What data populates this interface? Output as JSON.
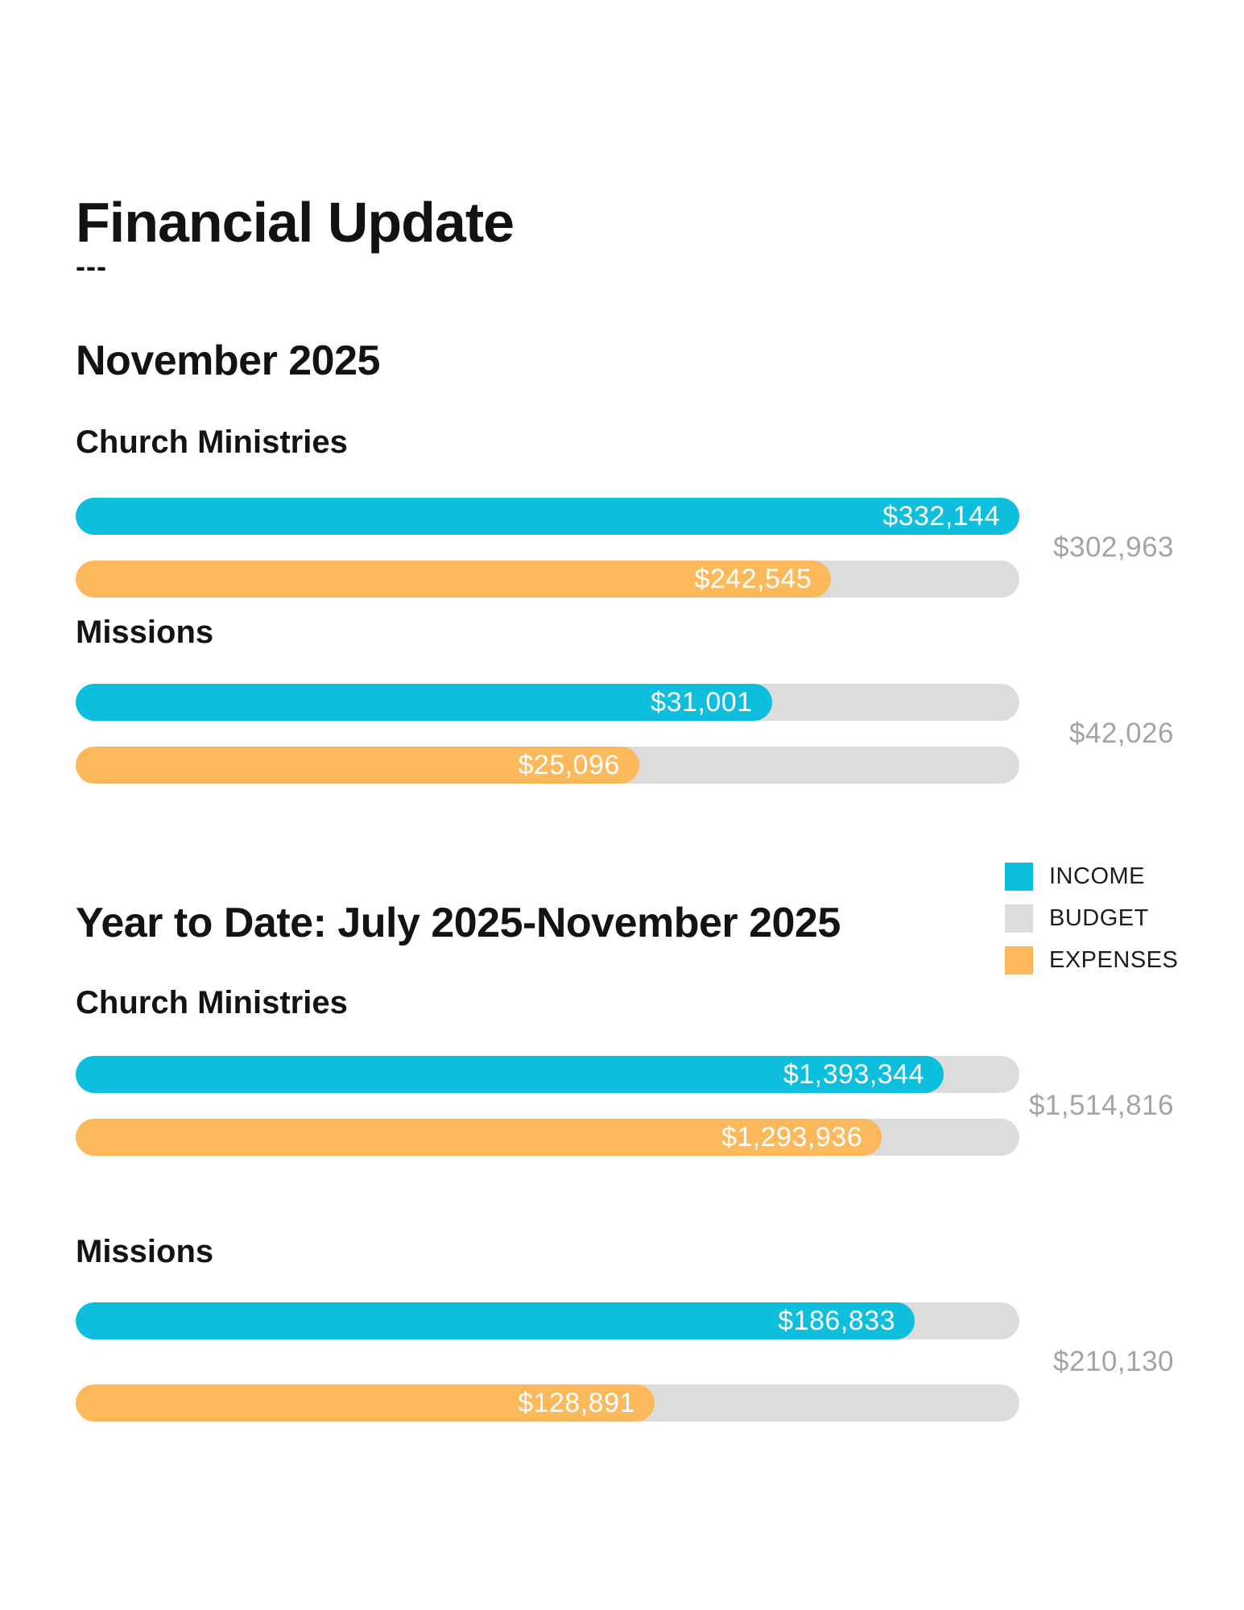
{
  "title": "Financial Update",
  "title_dashes": "---",
  "colors": {
    "income": "#0DBEDD",
    "budget": "#DCDCDC",
    "expenses": "#FBB95C",
    "budget_text": "#A4A4A4"
  },
  "legend": [
    {
      "label": "INCOME",
      "color_key": "income"
    },
    {
      "label": "BUDGET",
      "color_key": "budget"
    },
    {
      "label": "EXPENSES",
      "color_key": "expenses"
    }
  ],
  "chart_data": [
    {
      "type": "bar",
      "orientation": "horizontal",
      "title": "November 2025",
      "series_names": [
        "INCOME",
        "BUDGET",
        "EXPENSES"
      ],
      "groups": [
        {
          "category": "Church Ministries",
          "income": 332144,
          "budget": 302963,
          "expenses": 242545,
          "income_label": "$332,144",
          "budget_label": "$302,963",
          "expenses_label": "$242,545"
        },
        {
          "category": "Missions",
          "income": 31001,
          "budget": 42026,
          "expenses": 25096,
          "income_label": "$31,001",
          "budget_label": "$42,026",
          "expenses_label": "$25,096"
        }
      ]
    },
    {
      "type": "bar",
      "orientation": "horizontal",
      "title": "Year to Date: July 2025-November 2025",
      "series_names": [
        "INCOME",
        "BUDGET",
        "EXPENSES"
      ],
      "groups": [
        {
          "category": "Church Ministries",
          "income": 1393344,
          "budget": 1514816,
          "expenses": 1293936,
          "income_label": "$1,393,344",
          "budget_label": "$1,514,816",
          "expenses_label": "$1,293,936"
        },
        {
          "category": "Missions",
          "income": 186833,
          "budget": 210130,
          "expenses": 128891,
          "income_label": "$186,833",
          "budget_label": "$210,130",
          "expenses_label": "$128,891"
        }
      ]
    }
  ]
}
